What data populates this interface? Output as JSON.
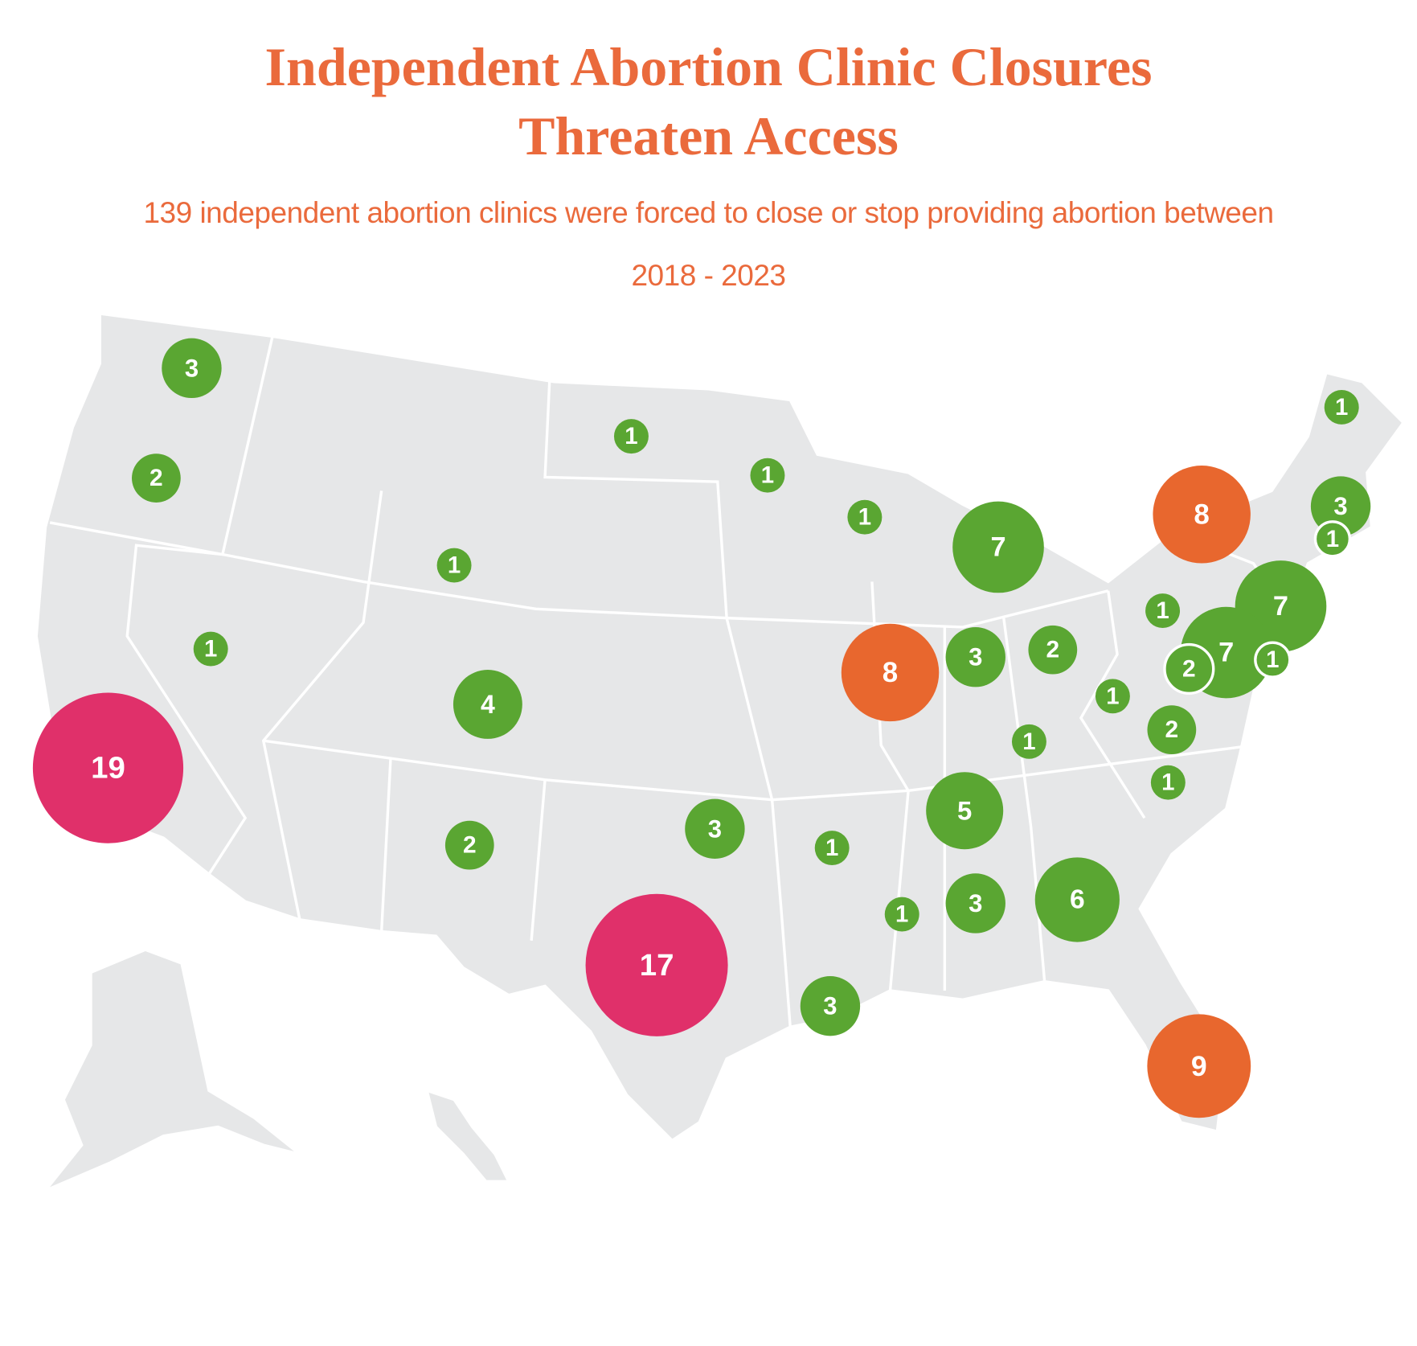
{
  "title": "Independent Abortion Clinic Closures Threaten Access",
  "subtitle": "139 independent abortion clinics were forced to close or stop providing abortion between 2018 - 2023",
  "markers": [
    {
      "value": 3,
      "color": "#5aa632"
    },
    {
      "value": 2,
      "color": "#5aa632"
    },
    {
      "value": 1,
      "color": "#5aa632"
    },
    {
      "value": 19,
      "color": "#e0306a"
    },
    {
      "value": 1,
      "color": "#5aa632"
    },
    {
      "value": 4,
      "color": "#5aa632"
    },
    {
      "value": 2,
      "color": "#5aa632"
    },
    {
      "value": 17,
      "color": "#e0306a"
    },
    {
      "value": 3,
      "color": "#5aa632"
    },
    {
      "value": 1,
      "color": "#5aa632"
    },
    {
      "value": 1,
      "color": "#5aa632"
    },
    {
      "value": 1,
      "color": "#5aa632"
    },
    {
      "value": 7,
      "color": "#5aa632"
    },
    {
      "value": 8,
      "color": "#e8672e"
    },
    {
      "value": 3,
      "color": "#5aa632"
    },
    {
      "value": 2,
      "color": "#5aa632"
    },
    {
      "value": 1,
      "color": "#5aa632"
    },
    {
      "value": 5,
      "color": "#5aa632"
    },
    {
      "value": 1,
      "color": "#5aa632"
    },
    {
      "value": 1,
      "color": "#5aa632"
    },
    {
      "value": 3,
      "color": "#5aa632"
    },
    {
      "value": 6,
      "color": "#5aa632"
    },
    {
      "value": 3,
      "color": "#5aa632"
    },
    {
      "value": 9,
      "color": "#e8672e"
    },
    {
      "value": 1,
      "color": "#5aa632"
    },
    {
      "value": 2,
      "color": "#5aa632"
    },
    {
      "value": 1,
      "color": "#5aa632"
    },
    {
      "value": 1,
      "color": "#5aa632"
    },
    {
      "value": 8,
      "color": "#e8672e"
    },
    {
      "value": 1,
      "color": "#5aa632"
    },
    {
      "value": 3,
      "color": "#5aa632"
    },
    {
      "value": 1,
      "color": "#5aa632"
    },
    {
      "value": 7,
      "color": "#5aa632"
    },
    {
      "value": 7,
      "color": "#5aa632"
    },
    {
      "value": 2,
      "color": "#5aa632"
    },
    {
      "value": 1,
      "color": "#5aa632"
    }
  ]
}
